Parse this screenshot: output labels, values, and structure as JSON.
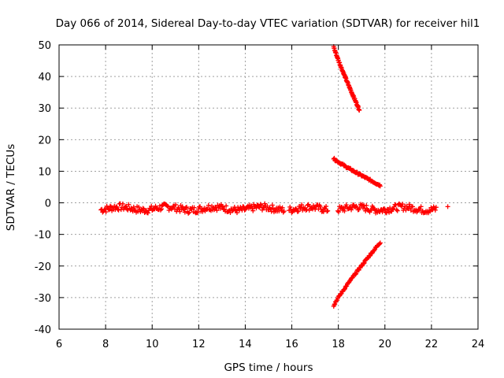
{
  "chart_data": {
    "type": "scatter",
    "title": "Day 066 of 2014, Sidereal Day-to-day VTEC variation (SDTVAR) for receiver hil1",
    "xlabel": "GPS time / hours",
    "ylabel": "SDTVAR / TECUs",
    "xlim": [
      6,
      24
    ],
    "ylim": [
      -40,
      50
    ],
    "x_ticks": [
      6,
      8,
      10,
      12,
      14,
      16,
      18,
      20,
      22,
      24
    ],
    "y_ticks": [
      -40,
      -30,
      -20,
      -10,
      0,
      10,
      20,
      30,
      40,
      50
    ],
    "grid": true,
    "marker": "+",
    "color": "#ff0000",
    "series": [
      {
        "name": "main band",
        "x_start": 7.8,
        "x_end": 22.2,
        "y_center": -1.8,
        "spread": 2.2
      },
      {
        "name": "upper arc",
        "x_start": 17.8,
        "x_end": 18.9,
        "y_start": 49.5,
        "y_end": 29.5
      },
      {
        "name": "middle arc",
        "x_start": 17.8,
        "x_end": 19.8,
        "y_start": 14,
        "y_end": 5.5
      },
      {
        "name": "lower arc",
        "x_start": 17.8,
        "x_end": 19.8,
        "y_start": -32.5,
        "y_end": -12.5
      },
      {
        "name": "isolated point",
        "x": [
          22.7
        ],
        "y": [
          -1.2
        ]
      }
    ]
  }
}
